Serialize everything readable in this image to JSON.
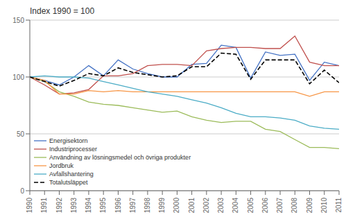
{
  "chart_data": {
    "type": "line",
    "title": "Index 1990 = 100",
    "x": [
      1990,
      1991,
      1992,
      1993,
      1994,
      1995,
      1996,
      1997,
      1998,
      1999,
      2000,
      2001,
      2002,
      2003,
      2004,
      2005,
      2006,
      2007,
      2008,
      2009,
      2010,
      2011
    ],
    "xlim": [
      1990,
      2011
    ],
    "xticks": [
      1990,
      1991,
      1992,
      1993,
      1994,
      1995,
      1996,
      1997,
      1998,
      1999,
      2000,
      2001,
      2002,
      2003,
      2004,
      2005,
      2006,
      2007,
      2008,
      2009,
      2010,
      2011
    ],
    "ylim": [
      0,
      150
    ],
    "yticks": [
      0,
      50,
      100,
      150
    ],
    "grid": true,
    "legend": "lower left",
    "series": [
      {
        "name": "Energisektorn",
        "color": "#4472C4",
        "line_style": "solid",
        "values": [
          100,
          97,
          93,
          100,
          110,
          101,
          115,
          107,
          103,
          100,
          100,
          111,
          112,
          128,
          126,
          99,
          122,
          119,
          120,
          97,
          113,
          110
        ]
      },
      {
        "name": "Industriprocesser",
        "color": "#C0504D",
        "line_style": "solid",
        "values": [
          100,
          93,
          85,
          86,
          89,
          101,
          101,
          103,
          110,
          111,
          111,
          110,
          123,
          125,
          126,
          126,
          125,
          125,
          136,
          113,
          110,
          110
        ]
      },
      {
        "name": "Användning av lösningsmedel och övriga produkter",
        "color": "#9BBB59",
        "line_style": "solid",
        "values": [
          100,
          96,
          87,
          83,
          78,
          76,
          75,
          73,
          71,
          69,
          70,
          65,
          62,
          60,
          61,
          61,
          54,
          52,
          45,
          38,
          38,
          37
        ]
      },
      {
        "name": "Jordbruk",
        "color": "#F79646",
        "line_style": "solid",
        "values": [
          100,
          97,
          85,
          85,
          88,
          87,
          88,
          87,
          87,
          87,
          87,
          87,
          87,
          87,
          87,
          87,
          87,
          87,
          87,
          83,
          87,
          87
        ]
      },
      {
        "name": "Avfallshantering",
        "color": "#4BACC6",
        "line_style": "solid",
        "values": [
          100,
          101,
          100,
          100,
          99,
          96,
          93,
          90,
          87,
          85,
          83,
          80,
          77,
          73,
          68,
          65,
          65,
          64,
          62,
          57,
          55,
          54
        ]
      },
      {
        "name": "Totalutsläppet",
        "color": "#000000",
        "line_style": "dashed",
        "values": [
          100,
          96,
          92,
          97,
          103,
          101,
          108,
          104,
          102,
          100,
          101,
          109,
          109,
          121,
          120,
          98,
          115,
          115,
          115,
          94,
          106,
          95
        ]
      }
    ]
  }
}
